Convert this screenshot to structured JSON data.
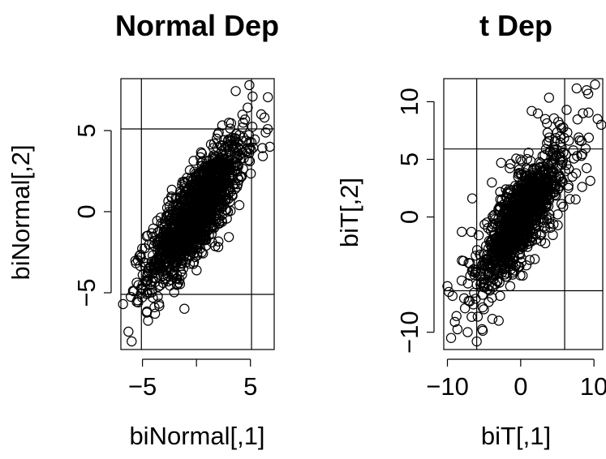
{
  "chart_data": [
    {
      "type": "scatter",
      "title": "Normal Dep",
      "xlabel": "biNormal[,1]",
      "ylabel": "biNormal[,2]",
      "xlim": [
        -7,
        7.2
      ],
      "ylim": [
        -8.5,
        8.2
      ],
      "xticks": [
        -5,
        0,
        5
      ],
      "xtick_labels": [
        "−5",
        "",
        "5"
      ],
      "yticks": [
        -5,
        0,
        5
      ],
      "ytick_labels": [
        "−5",
        "0",
        "5"
      ],
      "reference_lines": {
        "v": [
          -5.1,
          5.1
        ],
        "h": [
          -5.1,
          5.1
        ]
      },
      "cloud": {
        "mean": [
          0,
          0
        ],
        "sd": [
          2.2,
          2.2
        ],
        "correlation": 0.8,
        "n": 1400
      },
      "outliers": [
        [
          -6.3,
          -7.4
        ],
        [
          -6.0,
          -8.0
        ],
        [
          -6.8,
          -5.7
        ],
        [
          4.9,
          7.8
        ],
        [
          5.2,
          7.1
        ],
        [
          6.3,
          5.8
        ],
        [
          6.8,
          4.0
        ],
        [
          6.0,
          6.0
        ]
      ]
    },
    {
      "type": "scatter",
      "title": "t Dep",
      "xlabel": "biT[,1]",
      "ylabel": "biT[,2]",
      "xlim": [
        -10.5,
        11.2
      ],
      "ylim": [
        -11.5,
        12
      ],
      "xticks": [
        -10,
        0,
        10
      ],
      "xtick_labels": [
        "−10",
        "0",
        "10"
      ],
      "yticks": [
        -10,
        0,
        5,
        10
      ],
      "ytick_labels": [
        "−10",
        "0",
        "5",
        "10"
      ],
      "reference_lines": {
        "v": [
          -6,
          6
        ],
        "h": [
          -6.4,
          5.9
        ]
      },
      "cloud": {
        "mean": [
          0,
          0
        ],
        "sd": [
          2.3,
          2.3
        ],
        "correlation": 0.8,
        "df": 4,
        "n": 1400
      },
      "outliers": [
        [
          -9.5,
          -10.5
        ],
        [
          -6.0,
          -10.8
        ],
        [
          -3.0,
          -9.0
        ],
        [
          8.5,
          9.0
        ],
        [
          9.0,
          11.0
        ],
        [
          11.0,
          8.0
        ],
        [
          10.5,
          8.5
        ],
        [
          1.5,
          9.2
        ],
        [
          -10.0,
          -6.0
        ],
        [
          -9.8,
          -6.5
        ]
      ]
    }
  ]
}
